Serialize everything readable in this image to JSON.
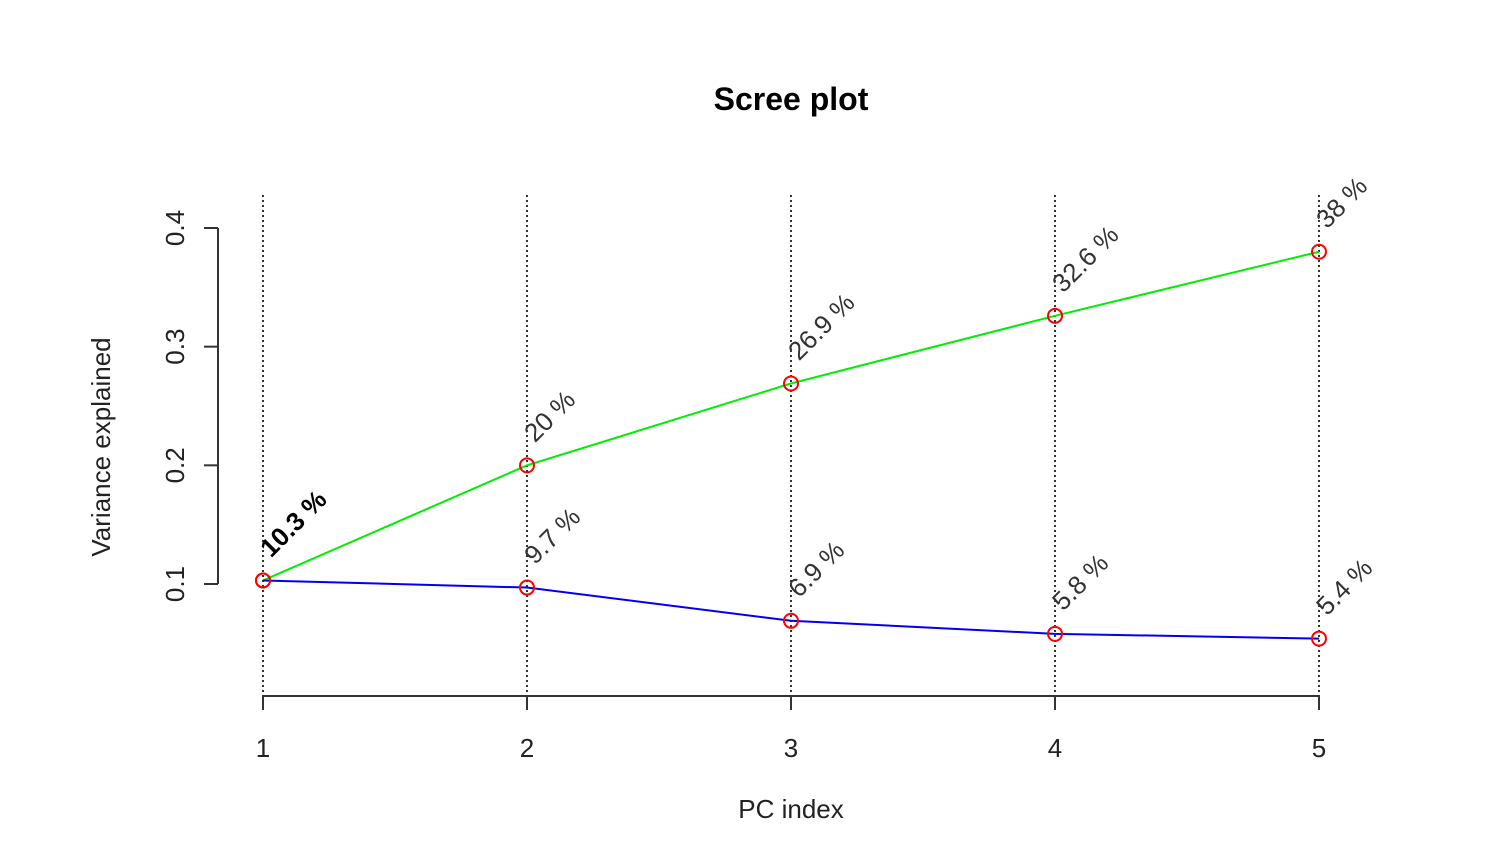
{
  "chart_data": {
    "type": "line",
    "title": "Scree plot",
    "xlabel": "PC index",
    "ylabel": "Variance explained",
    "x": [
      1,
      2,
      3,
      4,
      5
    ],
    "yticks": [
      0.1,
      0.2,
      0.3,
      0.4
    ],
    "ylim": [
      0.01,
      0.42
    ],
    "xlim": [
      1,
      5
    ],
    "grid": "vertical-dotted",
    "series": [
      {
        "values": [
          0.103,
          0.2,
          0.269,
          0.326,
          0.38
        ],
        "labels": [
          "10.3 %",
          "20 %",
          "26.9 %",
          "32.6 %",
          "38 %"
        ],
        "line_color": "#00ee00"
      },
      {
        "values": [
          0.103,
          0.097,
          0.069,
          0.058,
          0.054
        ],
        "labels": [
          "",
          "9.7 %",
          "6.9 %",
          "5.8 %",
          "5.4 %"
        ],
        "line_color": "#0000ee"
      }
    ],
    "marker_color": "#ff0000"
  }
}
